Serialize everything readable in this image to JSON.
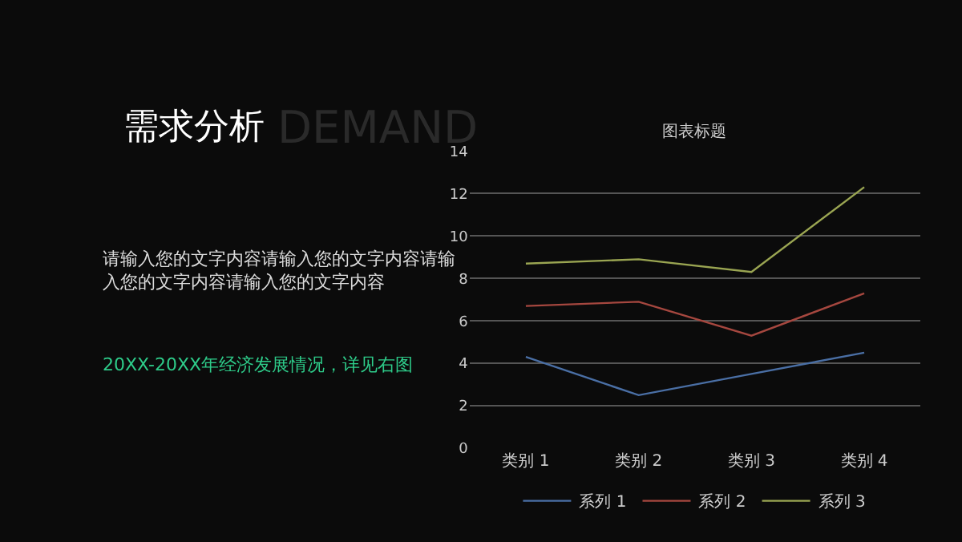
{
  "chart_data": {
    "type": "line",
    "title": "图表标题",
    "categories": [
      "类别 1",
      "类别 2",
      "类别 3",
      "类别 4"
    ],
    "series": [
      {
        "name": "系列 1",
        "color": "#4a6fa5",
        "values": [
          4.3,
          2.5,
          3.5,
          4.5
        ]
      },
      {
        "name": "系列 2",
        "color": "#a5473f",
        "values": [
          6.7,
          6.9,
          5.3,
          7.3
        ]
      },
      {
        "name": "系列 3",
        "color": "#9aa552",
        "values": [
          8.7,
          8.9,
          8.3,
          12.3
        ]
      }
    ],
    "ylim": [
      0,
      14
    ],
    "yticks": [
      0,
      2,
      4,
      6,
      8,
      10,
      12,
      14
    ],
    "grid": "y",
    "legend": "bottom",
    "marker": "none",
    "line_style": "solid",
    "annotations": [
      "DEMAND",
      "需求分析",
      "请输入您的文字内容请输入您的文字内容请输入您的文字内容请输入您的文字内容",
      "20XX-20XX年经济发展情况，详见右图"
    ]
  }
}
